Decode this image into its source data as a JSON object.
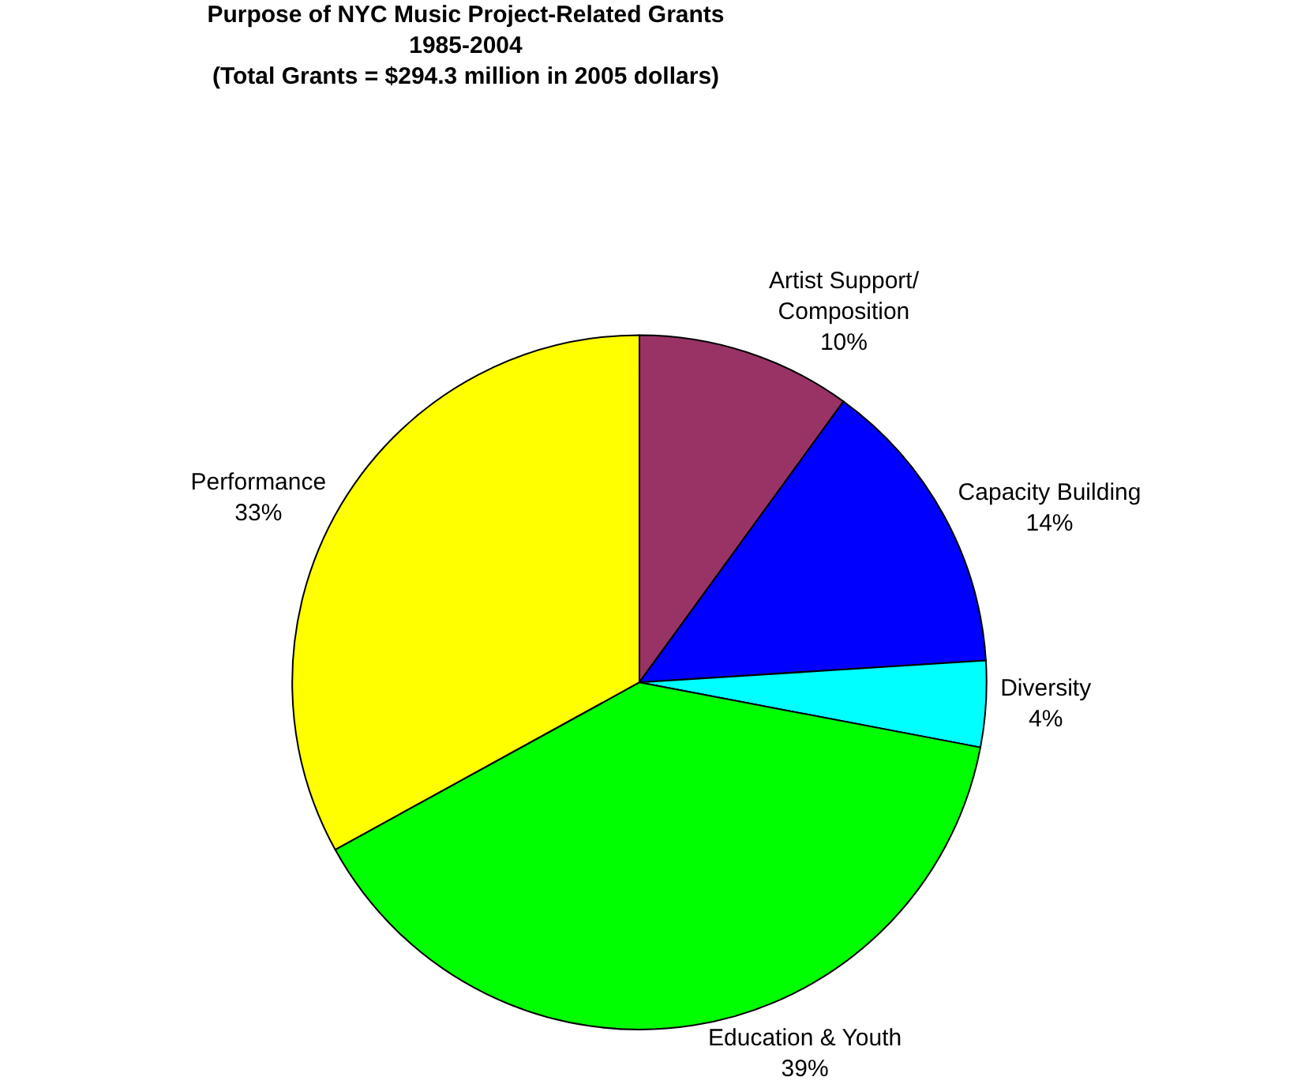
{
  "chart_data": {
    "type": "pie",
    "title": "Purpose of NYC Music Project-Related Grants\n1985-2004\n(Total Grants = $294.3 million in 2005 dollars)",
    "categories": [
      "Artist Support/\nComposition",
      "Capacity Building",
      "Diversity",
      "Education & Youth",
      "Performance"
    ],
    "values": [
      10,
      14,
      4,
      39,
      33
    ],
    "value_labels": [
      "10%",
      "14%",
      "4%",
      "39%",
      "33%"
    ],
    "colors": [
      "#993366",
      "#0000ff",
      "#00ffff",
      "#00ff00",
      "#ffff00"
    ],
    "legend": false
  }
}
